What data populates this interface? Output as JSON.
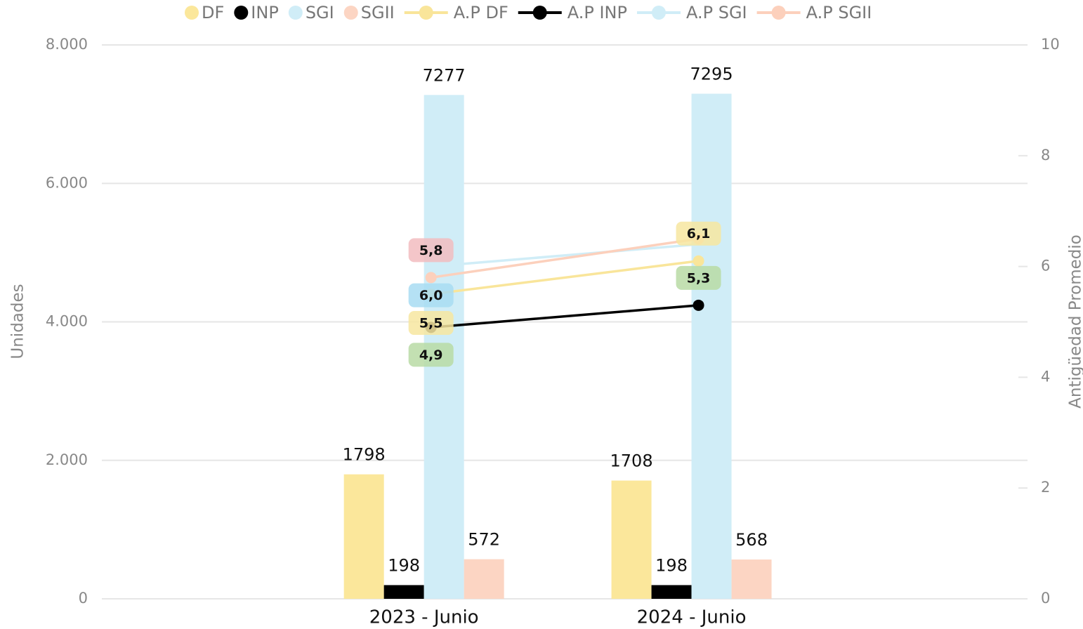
{
  "chart_data": {
    "type": "bar",
    "categories": [
      "2023 - Junio",
      "2024 - Junio"
    ],
    "series": [
      {
        "name": "DF",
        "color": "#fbe79b",
        "values": [
          1798,
          1708
        ]
      },
      {
        "name": "INP",
        "color": "#000000",
        "values": [
          198,
          198
        ]
      },
      {
        "name": "SGI",
        "color": "#d0edf7",
        "values": [
          7277,
          7295
        ]
      },
      {
        "name": "SGII",
        "color": "#fcd5c3",
        "values": [
          572,
          568
        ]
      },
      {
        "name": "A.P DF",
        "type": "line",
        "axis": "y2",
        "color": "#f9e59a",
        "label_color": "#f7e6a0",
        "values": [
          5.5,
          6.1
        ],
        "value_labels": [
          "5,5",
          "6,1"
        ]
      },
      {
        "name": "A.P INP",
        "type": "line",
        "axis": "y2",
        "color": "#000000",
        "label_color": "#b9daa5",
        "values": [
          4.9,
          5.3
        ],
        "value_labels": [
          "4,9",
          "5,3"
        ]
      },
      {
        "name": "A.P SGI",
        "type": "line",
        "axis": "y2",
        "color": "#d0edf7",
        "label_color": "#a8dcf2",
        "values": [
          6.0,
          6.4
        ],
        "value_labels": [
          "6,0",
          null
        ]
      },
      {
        "name": "A.P SGII",
        "type": "line",
        "axis": "y2",
        "color": "#fcd0bc",
        "label_color": "#f2bcc0",
        "values": [
          5.8,
          6.5
        ],
        "value_labels": [
          "5,8",
          null
        ]
      }
    ],
    "ylabel": "Unidades",
    "y2label": "Antigüedad Promedio",
    "ylim": [
      0,
      8000
    ],
    "yticks": [
      0,
      {
        "value": 2000,
        "label": "2.000"
      },
      {
        "value": 4000,
        "label": "4.000"
      },
      {
        "value": 6000,
        "label": "6.000"
      },
      {
        "value": 8000,
        "label": "8.000"
      }
    ],
    "y2lim": [
      0,
      10
    ],
    "y2ticks": [
      0,
      2,
      4,
      6,
      8,
      10
    ],
    "grid": true,
    "legend": "top"
  }
}
